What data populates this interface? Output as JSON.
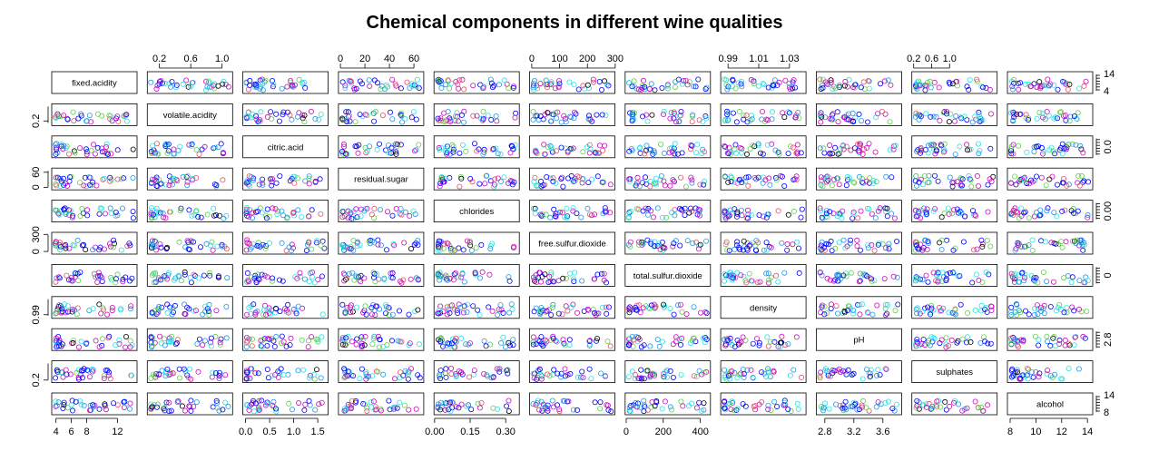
{
  "title": "Chemical components in different wine qualities",
  "chart_data": {
    "type": "scatter",
    "variables": [
      "fixed.acidity",
      "volatile.acidity",
      "citric.acid",
      "residual.sugar",
      "chlorides",
      "free.sulfur.dioxide",
      "total.sulfur.dioxide",
      "density",
      "pH",
      "sulphates",
      "alcohol"
    ],
    "ranges": [
      [
        3.8,
        14.2
      ],
      [
        0.08,
        1.1
      ],
      [
        0,
        1.66
      ],
      [
        0.6,
        65.8
      ],
      [
        0.009,
        0.346
      ],
      [
        2,
        289
      ],
      [
        9,
        440
      ],
      [
        0.987,
        1.039
      ],
      [
        2.72,
        3.82
      ],
      [
        0.22,
        2.0
      ],
      [
        8,
        14.2
      ]
    ],
    "axis_ticks": {
      "top": [
        null,
        [
          "0.2",
          "0.6",
          "1.0"
        ],
        null,
        [
          "0",
          "20",
          "40",
          "60"
        ],
        null,
        [
          "0",
          "100",
          "200",
          "300"
        ],
        null,
        [
          "0.99",
          "1.01",
          "1.03"
        ],
        null,
        [
          "0.2",
          "0.6",
          "1.0"
        ],
        null
      ],
      "bottom": [
        [
          "4",
          "6",
          "8",
          "12"
        ],
        null,
        [
          "0.0",
          "0.5",
          "1.0",
          "1.5"
        ],
        null,
        [
          "0.00",
          "0.15",
          "0.30"
        ],
        null,
        [
          "0",
          "200",
          "400"
        ],
        null,
        [
          "2.8",
          "3.2",
          "3.6"
        ],
        null,
        [
          "8",
          "10",
          "12",
          "14"
        ]
      ],
      "left": [
        null,
        [
          "0.2"
        ],
        null,
        [
          "0",
          "60"
        ],
        null,
        [
          "0",
          "300"
        ],
        null,
        [
          "0.99"
        ],
        null,
        [
          "0.2"
        ],
        null
      ],
      "right": [
        [
          "4",
          "14"
        ],
        null,
        [
          "0.0"
        ],
        null,
        [
          "0.00"
        ],
        null,
        [
          "0"
        ],
        null,
        [
          "2.8"
        ],
        null,
        [
          "8",
          "14"
        ]
      ]
    },
    "tick_values": {
      "top": [
        null,
        [
          0.2,
          0.6,
          1.0
        ],
        null,
        [
          0,
          20,
          40,
          60
        ],
        null,
        [
          0,
          100,
          200,
          300
        ],
        null,
        [
          0.99,
          1.01,
          1.03
        ],
        null,
        [
          0.2,
          0.6,
          1.0
        ],
        null
      ],
      "bottom": [
        [
          4,
          6,
          8,
          12
        ],
        null,
        [
          0,
          0.5,
          1.0,
          1.5
        ],
        null,
        [
          0,
          0.15,
          0.3
        ],
        null,
        [
          0,
          200,
          400
        ],
        null,
        [
          2.8,
          3.2,
          3.6
        ],
        null,
        [
          8,
          10,
          12,
          14
        ]
      ],
      "left": [
        null,
        [
          0.2
        ],
        null,
        [
          0,
          60
        ],
        null,
        [
          0,
          300
        ],
        null,
        [
          0.99
        ],
        null,
        [
          0.2
        ],
        null
      ],
      "right": [
        [
          4,
          14
        ],
        null,
        [
          0.0
        ],
        null,
        [
          0.0
        ],
        null,
        [
          0
        ],
        null,
        [
          2.8
        ],
        null,
        [
          8,
          14
        ]
      ]
    },
    "group_colors": [
      "#000000",
      "#DF536B",
      "#61D04F",
      "#2297E6",
      "#28E2E5",
      "#CD0BBC",
      "#0000FF"
    ],
    "point_marker": "open-circle",
    "panels": "pairs scatterplot matrix; each off-diagonal panel plots column variable (x) against row variable (y)"
  }
}
